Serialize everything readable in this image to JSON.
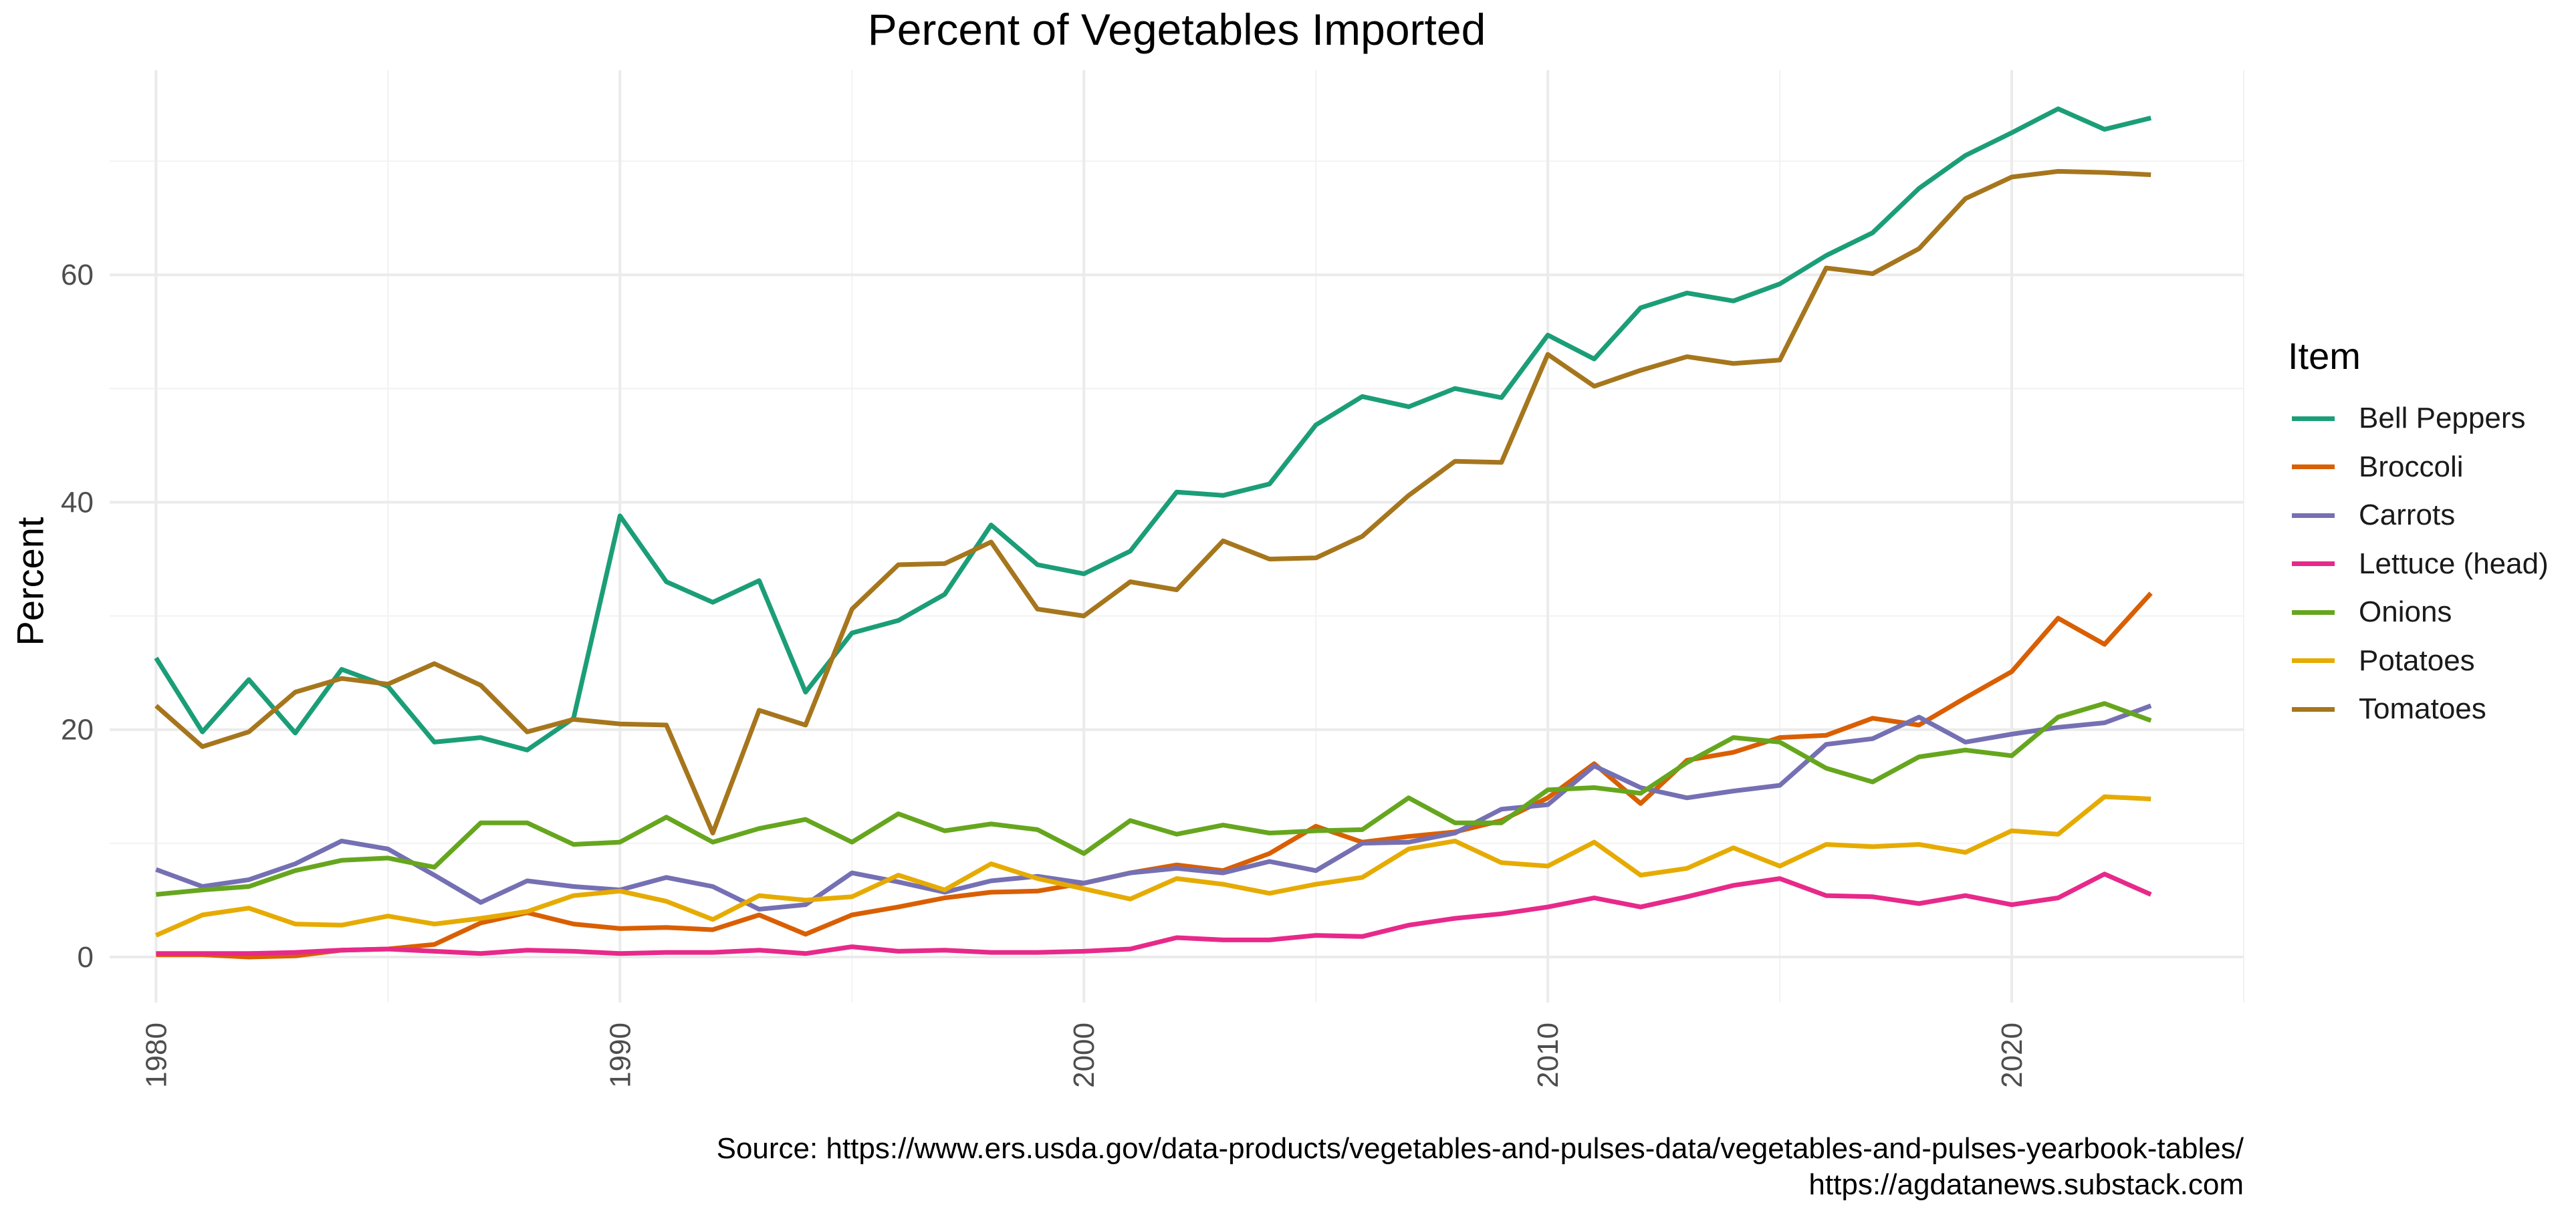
{
  "chart_data": {
    "type": "line",
    "title": "Percent of Vegetables Imported",
    "xlabel": "",
    "ylabel": "Percent",
    "xlim": [
      1979,
      2025
    ],
    "ylim": [
      -4,
      78
    ],
    "x_ticks": [
      1980,
      1990,
      2000,
      2010,
      2020
    ],
    "y_ticks": [
      0,
      20,
      40,
      60
    ],
    "grid": true,
    "legend_title": "Item",
    "legend_position": "right",
    "x": [
      1980,
      1981,
      1982,
      1983,
      1984,
      1985,
      1986,
      1987,
      1988,
      1989,
      1990,
      1991,
      1992,
      1993,
      1994,
      1995,
      1996,
      1997,
      1998,
      1999,
      2000,
      2001,
      2002,
      2003,
      2004,
      2005,
      2006,
      2007,
      2008,
      2009,
      2010,
      2011,
      2012,
      2013,
      2014,
      2015,
      2016,
      2017,
      2018,
      2019,
      2020,
      2021,
      2022,
      2023
    ],
    "series": [
      {
        "name": "Bell Peppers",
        "color": "#1B9E77",
        "values": [
          26.3,
          19.8,
          24.4,
          19.7,
          25.3,
          23.8,
          18.9,
          19.3,
          18.2,
          21.0,
          38.8,
          33.0,
          31.2,
          33.1,
          23.3,
          28.5,
          29.6,
          31.9,
          38.0,
          34.5,
          33.7,
          35.7,
          40.9,
          40.6,
          41.6,
          46.8,
          49.3,
          48.4,
          50.0,
          49.2,
          54.7,
          52.6,
          57.1,
          58.4,
          57.7,
          59.2,
          61.7,
          63.7,
          67.6,
          70.5,
          72.5,
          74.6,
          72.8,
          73.8
        ]
      },
      {
        "name": "Broccoli",
        "color": "#D95F02",
        "values": [
          0.2,
          0.2,
          0.0,
          0.1,
          0.6,
          0.7,
          1.1,
          3.0,
          3.9,
          2.9,
          2.5,
          2.6,
          2.4,
          3.7,
          2.0,
          3.7,
          4.4,
          5.2,
          5.7,
          5.8,
          6.5,
          7.4,
          8.1,
          7.6,
          9.1,
          11.5,
          10.1,
          10.6,
          11.0,
          12.0,
          14.0,
          17.0,
          13.5,
          17.3,
          18.0,
          19.3,
          19.5,
          21.0,
          20.4,
          22.8,
          25.1,
          29.8,
          27.5,
          32.0
        ]
      },
      {
        "name": "Carrots",
        "color": "#7570B3",
        "values": [
          7.7,
          6.2,
          6.8,
          8.2,
          10.2,
          9.5,
          7.2,
          4.8,
          6.7,
          6.2,
          5.9,
          7.0,
          6.2,
          4.2,
          4.6,
          7.4,
          6.6,
          5.7,
          6.7,
          7.1,
          6.5,
          7.4,
          7.8,
          7.4,
          8.4,
          7.6,
          10.0,
          10.1,
          10.9,
          13.0,
          13.4,
          16.8,
          14.9,
          14.0,
          14.6,
          15.1,
          18.7,
          19.2,
          21.1,
          18.9,
          19.6,
          20.2,
          20.6,
          22.1
        ]
      },
      {
        "name": "Lettuce (head)",
        "color": "#E7298A",
        "values": [
          0.3,
          0.3,
          0.3,
          0.4,
          0.6,
          0.7,
          0.5,
          0.3,
          0.6,
          0.5,
          0.3,
          0.4,
          0.4,
          0.6,
          0.3,
          0.9,
          0.5,
          0.6,
          0.4,
          0.4,
          0.5,
          0.7,
          1.7,
          1.5,
          1.5,
          1.9,
          1.8,
          2.8,
          3.4,
          3.8,
          4.4,
          5.2,
          4.4,
          5.3,
          6.3,
          6.9,
          5.4,
          5.3,
          4.7,
          5.4,
          4.6,
          5.2,
          7.3,
          5.5
        ]
      },
      {
        "name": "Onions",
        "color": "#66A61E",
        "values": [
          5.5,
          5.9,
          6.2,
          7.6,
          8.5,
          8.7,
          7.9,
          11.8,
          11.8,
          9.9,
          10.1,
          12.3,
          10.1,
          11.3,
          12.1,
          10.1,
          12.6,
          11.1,
          11.7,
          11.2,
          9.1,
          12.0,
          10.8,
          11.6,
          10.9,
          11.1,
          11.2,
          14.0,
          11.8,
          11.8,
          14.7,
          14.9,
          14.4,
          17.1,
          19.3,
          18.9,
          16.6,
          15.4,
          17.6,
          18.2,
          17.7,
          21.1,
          22.3,
          20.8
        ]
      },
      {
        "name": "Potatoes",
        "color": "#E6AB02",
        "values": [
          1.9,
          3.7,
          4.3,
          2.9,
          2.8,
          3.6,
          2.9,
          3.4,
          4.0,
          5.4,
          5.8,
          4.9,
          3.3,
          5.4,
          5.0,
          5.3,
          7.2,
          5.9,
          8.2,
          6.9,
          6.0,
          5.1,
          6.9,
          6.4,
          5.6,
          6.4,
          7.0,
          9.5,
          10.2,
          8.3,
          8.0,
          10.1,
          7.2,
          7.8,
          9.6,
          8.0,
          9.9,
          9.7,
          9.9,
          9.2,
          11.1,
          10.8,
          14.1,
          13.9
        ]
      },
      {
        "name": "Tomatoes",
        "color": "#A6761D",
        "values": [
          22.1,
          18.5,
          19.8,
          23.3,
          24.5,
          24.0,
          25.8,
          23.9,
          19.8,
          20.9,
          20.5,
          20.4,
          10.9,
          21.7,
          20.4,
          30.6,
          34.5,
          34.6,
          36.5,
          30.6,
          30.0,
          33.0,
          32.3,
          36.6,
          35.0,
          35.1,
          37.0,
          40.6,
          43.6,
          43.5,
          53.0,
          50.2,
          51.6,
          52.8,
          52.2,
          52.5,
          60.6,
          60.1,
          62.3,
          66.7,
          68.6,
          69.1,
          69.0,
          68.8
        ]
      }
    ]
  },
  "caption": {
    "line1": "Source: https://www.ers.usda.gov/data-products/vegetables-and-pulses-data/vegetables-and-pulses-yearbook-tables/",
    "line2": "https://agdatanews.substack.com"
  }
}
